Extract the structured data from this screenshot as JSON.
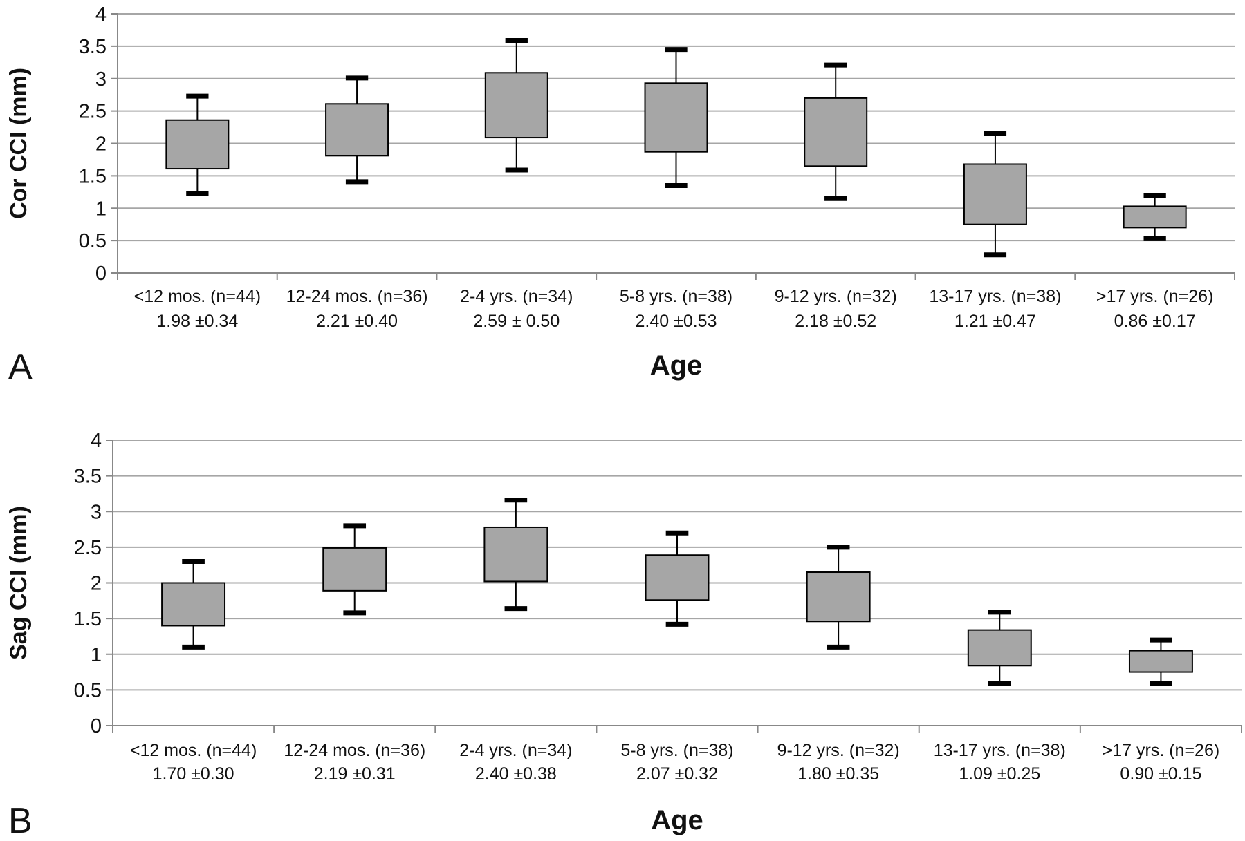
{
  "chart_data": [
    {
      "type": "box",
      "panel_label": "A",
      "ylabel": "Cor CCI (mm)",
      "xlabel": "Age",
      "ylim": [
        0,
        4
      ],
      "yticks": [
        "0",
        "0.5",
        "1",
        "1.5",
        "2",
        "2.5",
        "3",
        "3.5",
        "4"
      ],
      "grid": true,
      "categories": [
        "<12 mos. (n=44)",
        "12-24 mos. (n=36)",
        "2-4 yrs. (n=34)",
        "5-8 yrs. (n=38)",
        "9-12 yrs. (n=32)",
        "13-17 yrs. (n=38)",
        ">17 yrs. (n=26)"
      ],
      "summaries": [
        "1.98 ±0.34",
        "2.21 ±0.40",
        "2.59 ± 0.50",
        "2.40 ±0.53",
        "2.18 ±0.52",
        "1.21 ±0.47",
        "0.86 ±0.17"
      ],
      "boxes": [
        {
          "min": 1.23,
          "q1": 1.61,
          "q3": 2.36,
          "max": 2.73
        },
        {
          "min": 1.41,
          "q1": 1.81,
          "q3": 2.61,
          "max": 3.01
        },
        {
          "min": 1.59,
          "q1": 2.09,
          "q3": 3.09,
          "max": 3.59
        },
        {
          "min": 1.35,
          "q1": 1.87,
          "q3": 2.93,
          "max": 3.45
        },
        {
          "min": 1.15,
          "q1": 1.65,
          "q3": 2.7,
          "max": 3.21
        },
        {
          "min": 0.28,
          "q1": 0.75,
          "q3": 1.68,
          "max": 2.15
        },
        {
          "min": 0.53,
          "q1": 0.7,
          "q3": 1.03,
          "max": 1.19
        }
      ]
    },
    {
      "type": "box",
      "panel_label": "B",
      "ylabel": "Sag CCI (mm)",
      "xlabel": "Age",
      "ylim": [
        0,
        4
      ],
      "yticks": [
        "0",
        "0.5",
        "1",
        "1.5",
        "2",
        "2.5",
        "3",
        "3.5",
        "4"
      ],
      "grid": true,
      "categories": [
        "<12 mos. (n=44)",
        "12-24 mos. (n=36)",
        "2-4 yrs. (n=34)",
        "5-8 yrs. (n=38)",
        "9-12 yrs. (n=32)",
        "13-17 yrs. (n=38)",
        ">17 yrs. (n=26)"
      ],
      "summaries": [
        "1.70 ±0.30",
        "2.19 ±0.31",
        "2.40 ±0.38",
        "2.07 ±0.32",
        "1.80 ±0.35",
        "1.09 ±0.25",
        "0.90 ±0.15"
      ],
      "boxes": [
        {
          "min": 1.1,
          "q1": 1.4,
          "q3": 2.0,
          "max": 2.3
        },
        {
          "min": 1.58,
          "q1": 1.89,
          "q3": 2.49,
          "max": 2.8
        },
        {
          "min": 1.64,
          "q1": 2.02,
          "q3": 2.78,
          "max": 3.16
        },
        {
          "min": 1.42,
          "q1": 1.76,
          "q3": 2.39,
          "max": 2.7
        },
        {
          "min": 1.1,
          "q1": 1.46,
          "q3": 2.15,
          "max": 2.5
        },
        {
          "min": 0.59,
          "q1": 0.84,
          "q3": 1.34,
          "max": 1.59
        },
        {
          "min": 0.59,
          "q1": 0.75,
          "q3": 1.05,
          "max": 1.2
        }
      ],
      "style": {
        "box_fill": "#a6a6a6",
        "box_stroke": "#000000",
        "grid_color": "#a6a6a6",
        "axis_color": "#888888"
      }
    }
  ]
}
